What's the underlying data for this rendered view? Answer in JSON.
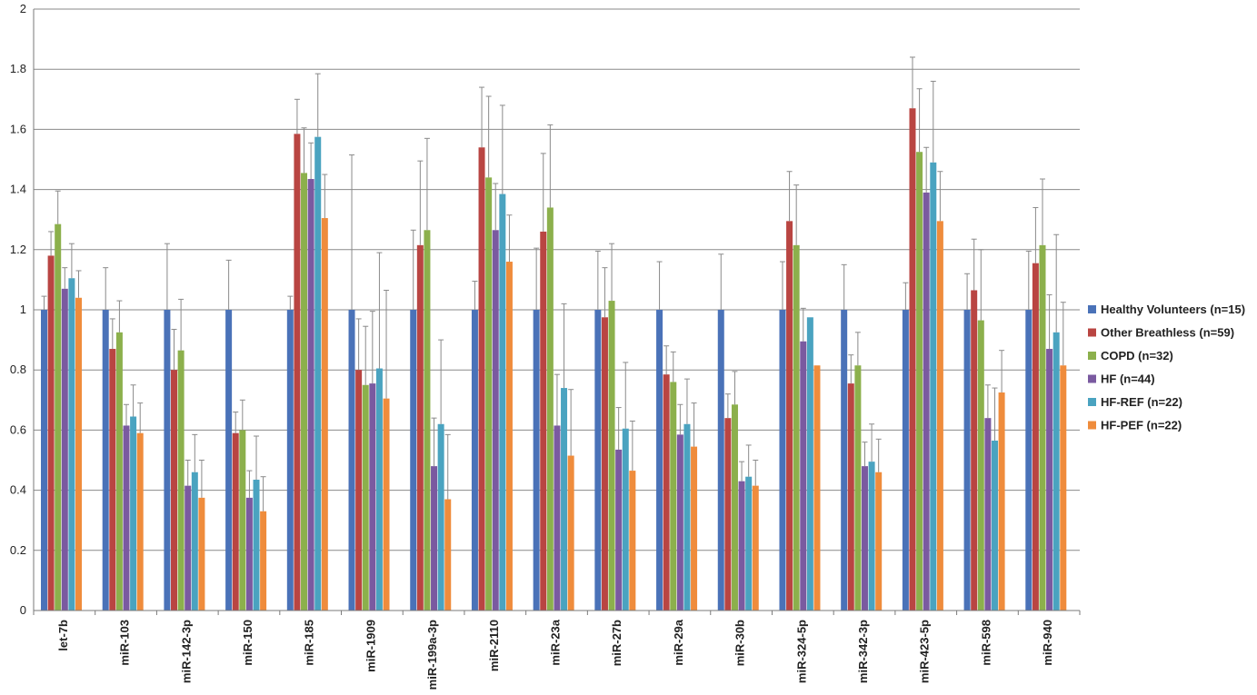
{
  "chart_data": {
    "type": "bar",
    "title": "",
    "xlabel": "",
    "ylabel": "",
    "ylim": [
      0,
      2
    ],
    "yticks": [
      "0",
      "0.2",
      "0.4",
      "0.6",
      "0.8",
      "1",
      "1.2",
      "1.4",
      "1.6",
      "1.8",
      "2"
    ],
    "grid": true,
    "legend_position": "right",
    "categories": [
      "let-7b",
      "miR-103",
      "miR-142-3p",
      "miR-150",
      "miR-185",
      "miR-1909",
      "miR-199a-3p",
      "miR-2110",
      "miR-23a",
      "miR-27b",
      "miR-29a",
      "miR-30b",
      "miR-324-5p",
      "miR-342-3p",
      "miR-423-5p",
      "miR-598",
      "miR-940"
    ],
    "series": [
      {
        "name": "Healthy Volunteers (n=15)",
        "color": "#4a72b8",
        "values": [
          1,
          1,
          1,
          1,
          1,
          1,
          1,
          1,
          1,
          1,
          1,
          1,
          1,
          1,
          1,
          1,
          1
        ],
        "error": [
          0.045,
          0.14,
          0.22,
          0.165,
          0.045,
          0.515,
          0.265,
          0.095,
          0.205,
          0.195,
          0.16,
          0.185,
          0.16,
          0.15,
          0.09,
          0.12,
          0.195
        ]
      },
      {
        "name": "Other Breathless (n=59)",
        "color": "#b94542",
        "values": [
          1.18,
          0.87,
          0.8,
          0.59,
          1.585,
          0.8,
          1.215,
          1.54,
          1.26,
          0.975,
          0.785,
          0.64,
          1.295,
          0.755,
          1.67,
          1.065,
          1.155
        ],
        "error": [
          0.08,
          0.1,
          0.135,
          0.07,
          0.115,
          0.17,
          0.28,
          0.2,
          0.26,
          0.165,
          0.095,
          0.08,
          0.165,
          0.095,
          0.17,
          0.17,
          0.185
        ]
      },
      {
        "name": "COPD (n=32)",
        "color": "#8cb04c",
        "values": [
          1.285,
          0.925,
          0.865,
          0.6,
          1.455,
          0.75,
          1.265,
          1.44,
          1.34,
          1.03,
          0.76,
          0.685,
          1.215,
          0.815,
          1.525,
          0.965,
          1.215
        ],
        "error": [
          0.11,
          0.105,
          0.17,
          0.1,
          0.15,
          0.195,
          0.305,
          0.27,
          0.275,
          0.19,
          0.1,
          0.11,
          0.2,
          0.11,
          0.21,
          0.235,
          0.22
        ]
      },
      {
        "name": "HF (n=44)",
        "color": "#7a5aa0",
        "values": [
          1.07,
          0.615,
          0.415,
          0.375,
          1.435,
          0.755,
          0.48,
          1.265,
          0.615,
          0.535,
          0.585,
          0.43,
          0.895,
          0.48,
          1.39,
          0.64,
          0.87
        ],
        "error": [
          0.07,
          0.07,
          0.085,
          0.09,
          0.12,
          0.24,
          0.16,
          0.155,
          0.17,
          0.14,
          0.1,
          0.065,
          0.11,
          0.08,
          0.15,
          0.11,
          0.18
        ]
      },
      {
        "name": "HF-REF (n=22)",
        "color": "#4aa3c0",
        "values": [
          1.105,
          0.645,
          0.46,
          0.435,
          1.575,
          0.805,
          0.62,
          1.385,
          0.74,
          0.605,
          0.62,
          0.445,
          0.975,
          0.495,
          1.49,
          0.565,
          0.925
        ],
        "error": [
          0.115,
          0.105,
          0.125,
          0.145,
          0.21,
          0.385,
          0.28,
          0.295,
          0.28,
          0.22,
          0.15,
          0.105,
          0.0,
          0.125,
          0.27,
          0.175,
          0.325
        ]
      },
      {
        "name": "HF-PEF (n=22)",
        "color": "#ef8c3c",
        "values": [
          1.04,
          0.59,
          0.375,
          0.33,
          1.305,
          0.705,
          0.37,
          1.16,
          0.515,
          0.465,
          0.545,
          0.415,
          0.815,
          0.46,
          1.295,
          0.725,
          0.815
        ],
        "error": [
          0.09,
          0.1,
          0.125,
          0.115,
          0.145,
          0.36,
          0.215,
          0.155,
          0.22,
          0.165,
          0.145,
          0.085,
          0.0,
          0.11,
          0.165,
          0.14,
          0.21
        ]
      }
    ]
  }
}
